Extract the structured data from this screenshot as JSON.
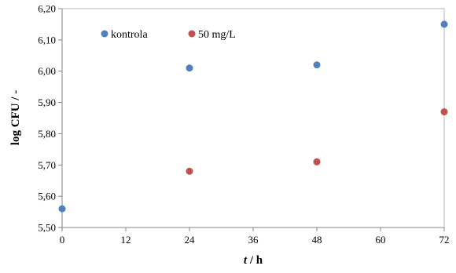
{
  "chart_data": {
    "type": "scatter",
    "title": "",
    "xlabel_var": "t",
    "xlabel_unit": " / h",
    "ylabel": "log CFU / -",
    "xlim": [
      0,
      72
    ],
    "ylim": [
      5.5,
      6.2
    ],
    "x_ticks": [
      "0",
      "12",
      "24",
      "36",
      "48",
      "60",
      "72"
    ],
    "y_ticks": [
      "5,50",
      "5,60",
      "5,70",
      "5,80",
      "5,90",
      "6,00",
      "6,10",
      "6,20"
    ],
    "grid": false,
    "legend_position": "top-left-inside",
    "series": [
      {
        "name": "kontrola",
        "color": "#4f81bd",
        "x": [
          0,
          24,
          48,
          72
        ],
        "y": [
          5.56,
          6.01,
          6.02,
          6.15
        ]
      },
      {
        "name": "50 mg/L",
        "color": "#c0504d",
        "x": [
          24,
          48,
          72
        ],
        "y": [
          5.68,
          5.71,
          5.87
        ]
      }
    ]
  }
}
